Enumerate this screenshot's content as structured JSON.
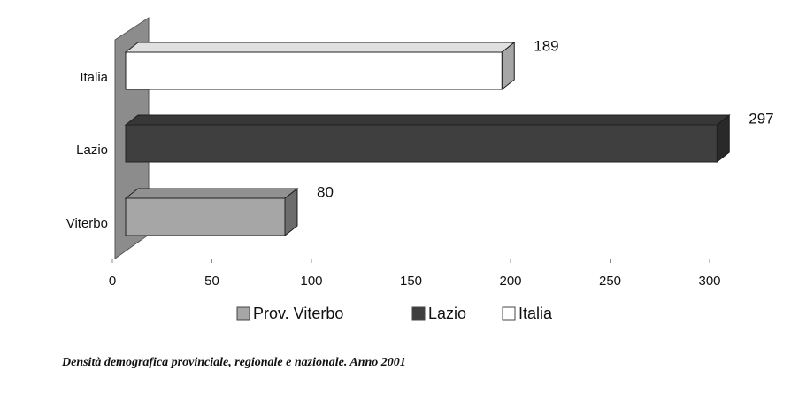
{
  "chart_data": {
    "type": "bar3d_horizontal",
    "categories": [
      "Viterbo",
      "Lazio",
      "Italia"
    ],
    "values": [
      80,
      297,
      189
    ],
    "colors": [
      "#a6a6a6",
      "#3f3f3f",
      "#ffffff"
    ],
    "legend": [
      "Prov. Viterbo",
      "Lazio",
      "Italia"
    ],
    "xlim": [
      0,
      300
    ],
    "xticks": [
      0,
      50,
      100,
      150,
      200,
      250,
      300
    ],
    "caption": "Densità demografica provinciale, regionale e nazionale. Anno 2001"
  }
}
